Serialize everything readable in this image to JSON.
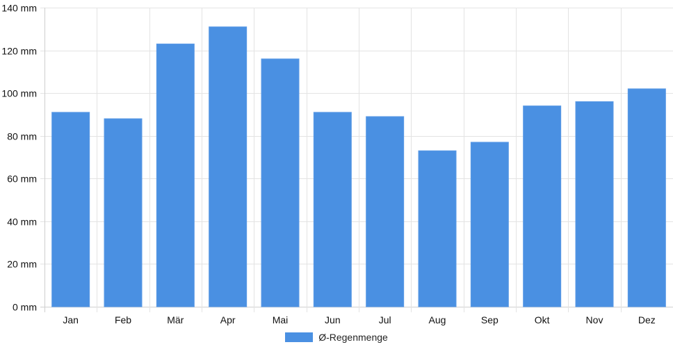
{
  "chart_data": {
    "type": "bar",
    "categories": [
      "Jan",
      "Feb",
      "Mär",
      "Apr",
      "Mai",
      "Jun",
      "Jul",
      "Aug",
      "Sep",
      "Okt",
      "Nov",
      "Dez"
    ],
    "series": [
      {
        "name": "Ø-Regenmenge",
        "values": [
          91,
          88,
          123,
          131,
          116,
          91,
          89,
          73,
          77,
          94,
          96,
          102
        ]
      }
    ],
    "ylim": [
      0,
      140
    ],
    "yticks": [
      0,
      20,
      40,
      60,
      80,
      100,
      120,
      140
    ],
    "y_unit": "mm",
    "grid": true,
    "legend_position": "bottom",
    "colors": {
      "bar": "#4a90e2",
      "bar_border": "#5a9ae6",
      "grid": "#e3e3e3",
      "axis": "#cfcfcf"
    }
  }
}
